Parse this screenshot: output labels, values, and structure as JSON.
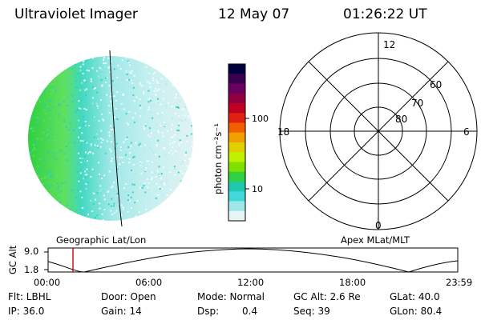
{
  "header": {
    "title": "Ultraviolet Imager",
    "date": "12 May 07",
    "time": "01:26:22 UT"
  },
  "colorbar": {
    "label": "photon cm⁻²s⁻¹",
    "ticks": [
      "100",
      "10"
    ],
    "colors": [
      "#000040",
      "#3a0050",
      "#6a0060",
      "#900040",
      "#c00020",
      "#e02010",
      "#f06000",
      "#f0a000",
      "#e0d000",
      "#c0f000",
      "#80e000",
      "#30d040",
      "#20c8b0",
      "#40d8d8",
      "#a0e8e8",
      "#e8f4f4"
    ]
  },
  "polar": {
    "mlt_labels": {
      "top": "12",
      "bottom": "0",
      "left": "18",
      "right": "6"
    },
    "lat_labels": [
      "60",
      "70",
      "80"
    ]
  },
  "timeline": {
    "label_left": "Geographic Lat/Lon",
    "label_right": "Apex MLat/MLT",
    "axis_label": "GC Alt",
    "y_ticks": [
      "9.0",
      "1.8"
    ],
    "x_ticks": [
      "00:00",
      "06:00",
      "12:00",
      "18:00",
      "23:59"
    ],
    "marker_time": "01:26",
    "line_color": "#cc0000"
  },
  "info": {
    "filter": "Flt: LBHL",
    "ip": "IP: 36.0",
    "door": "Door: Open",
    "gain": "Gain: 14",
    "mode": "Mode: Normal",
    "dsp_label": "Dsp:",
    "dsp_value": "0.4",
    "gc_alt": "GC Alt: 2.6 Re",
    "seq": "Seq: 39",
    "glat": "GLat: 40.0",
    "glon": "GLon: 80.4"
  }
}
